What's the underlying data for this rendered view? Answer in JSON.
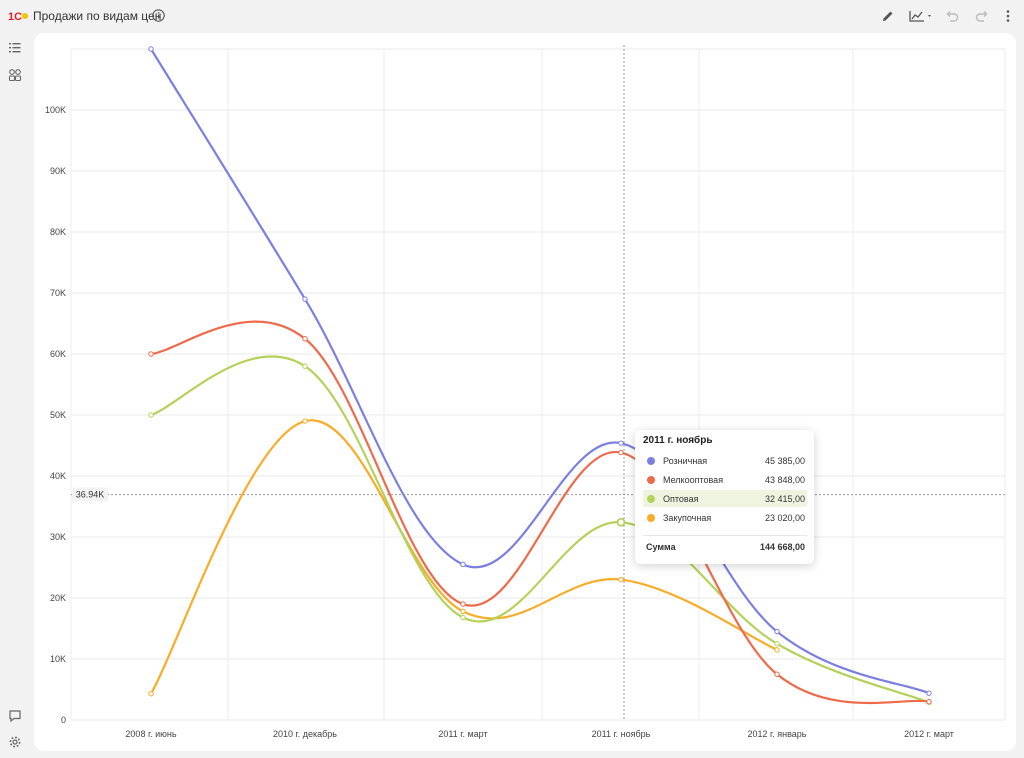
{
  "header": {
    "title": "Продажи по видам цен"
  },
  "icons": {
    "logo": "1c-logo-icon",
    "info": "info-icon",
    "edit": "pencil-icon",
    "chart_type": "line-chart-icon",
    "undo": "undo-icon",
    "redo": "redo-icon",
    "more": "more-vertical-icon",
    "list": "list-icon",
    "groups": "groups-icon",
    "comment": "comment-icon",
    "settings": "gear-icon"
  },
  "chart_data": {
    "type": "line",
    "categories": [
      "2008 г. июнь",
      "2010 г. декабрь",
      "2011 г. март",
      "2011 г. ноябрь",
      "2012 г. январь",
      "2012 г. март"
    ],
    "series": [
      {
        "name": "Розничная",
        "color": "#7b7fe0",
        "values": [
          110000,
          69000,
          25500,
          45385,
          14500,
          4400
        ]
      },
      {
        "name": "Мелкооптовая",
        "color": "#ef6a4a",
        "values": [
          60000,
          62500,
          19000,
          43848,
          7500,
          3000
        ]
      },
      {
        "name": "Оптовая",
        "color": "#b4d25a",
        "values": [
          50000,
          58000,
          16800,
          32415,
          12500,
          2900
        ]
      },
      {
        "name": "Закупочная",
        "color": "#f8ac27",
        "values": [
          4300,
          49000,
          17800,
          23020,
          11500,
          null
        ]
      }
    ],
    "y_ticks": [
      "0",
      "10K",
      "20K",
      "30K",
      "40K",
      "50K",
      "60K",
      "70K",
      "80K",
      "90K",
      "100K"
    ],
    "ylim": [
      0,
      110000
    ],
    "grid": true,
    "crosshair": {
      "category_index": 3,
      "y_value": 36940,
      "y_label": "36.94K"
    }
  },
  "tooltip": {
    "title": "2011 г. ноябрь",
    "rows": [
      {
        "name": "Розничная",
        "value": "45 385,00",
        "color": "#7b7fe0"
      },
      {
        "name": "Мелкооптовая",
        "value": "43 848,00",
        "color": "#ef6a4a"
      },
      {
        "name": "Оптовая",
        "value": "32 415,00",
        "color": "#b4d25a"
      },
      {
        "name": "Закупочная",
        "value": "23 020,00",
        "color": "#f8ac27"
      }
    ],
    "highlighted_row": 2,
    "sum_label": "Сумма",
    "sum_value": "144 668,00"
  }
}
